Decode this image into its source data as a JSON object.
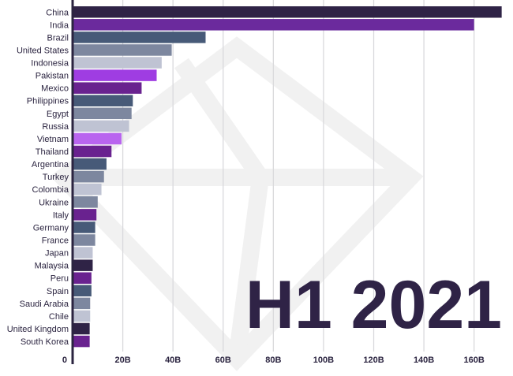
{
  "chart_data": {
    "type": "bar",
    "orientation": "horizontal",
    "title": "",
    "period_label": "H1 2021",
    "xlabel": "",
    "ylabel": "",
    "xlim": [
      0,
      173
    ],
    "x_ticks": [
      {
        "value": 0,
        "label": "0"
      },
      {
        "value": 20,
        "label": "20B"
      },
      {
        "value": 40,
        "label": "40B"
      },
      {
        "value": 60,
        "label": "60B"
      },
      {
        "value": 80,
        "label": "80B"
      },
      {
        "value": 100,
        "label": "100B"
      },
      {
        "value": 120,
        "label": "120B"
      },
      {
        "value": 140,
        "label": "140B"
      },
      {
        "value": 160,
        "label": "160B"
      }
    ],
    "grid": true,
    "legend": "none",
    "categories": [
      "China",
      "India",
      "Brazil",
      "United States",
      "Indonesia",
      "Pakistan",
      "Mexico",
      "Philippines",
      "Egypt",
      "Russia",
      "Vietnam",
      "Thailand",
      "Argentina",
      "Turkey",
      "Colombia",
      "Ukraine",
      "Italy",
      "Germany",
      "France",
      "Japan",
      "Malaysia",
      "Peru",
      "Spain",
      "Saudi Arabia",
      "Chile",
      "United Kingdom",
      "South Korea"
    ],
    "values": [
      171,
      160,
      53,
      39.5,
      35.5,
      33.5,
      27.5,
      24,
      23.5,
      22.5,
      19.5,
      15.5,
      13.5,
      12.5,
      11.5,
      10,
      9.5,
      9,
      9,
      8,
      8,
      7.5,
      7.5,
      7,
      7,
      6.8,
      6.8
    ],
    "bar_colors": [
      "#2f2346",
      "#6b2a9d",
      "#475a78",
      "#7d879f",
      "#bfc3d3",
      "#9f3de2",
      "#69228f",
      "#475a78",
      "#7d879f",
      "#bfc3d3",
      "#b965ef",
      "#69228f",
      "#475a78",
      "#7d879f",
      "#bfc3d3",
      "#7d879f",
      "#69228f",
      "#475a78",
      "#7d879f",
      "#bfc3d3",
      "#2f2346",
      "#69228f",
      "#475a78",
      "#7d879f",
      "#bfc3d3",
      "#2f2346",
      "#69228f"
    ]
  },
  "colors": {
    "label_text": "#2b2440",
    "grid": "#d9d9dc",
    "period_text": "#2f2346"
  }
}
